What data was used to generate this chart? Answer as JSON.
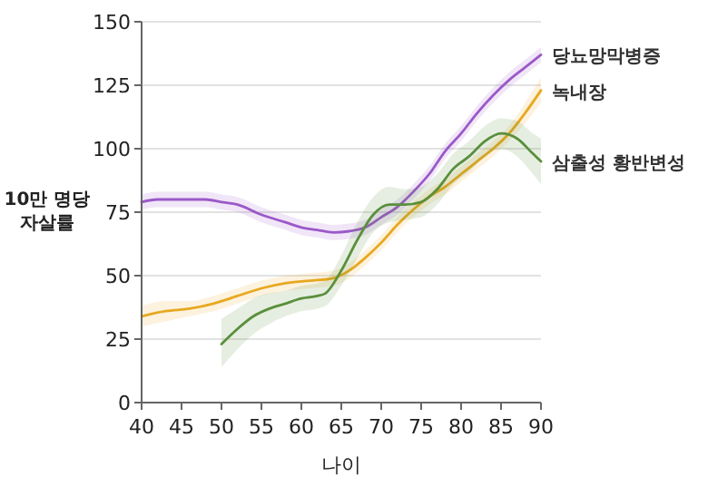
{
  "chart_data": {
    "type": "line",
    "xlabel": "나이",
    "ylabel": "10만 명당 자살률",
    "xlim": [
      40,
      90
    ],
    "xticks": [
      40,
      45,
      50,
      55,
      60,
      65,
      70,
      75,
      80,
      85,
      90
    ],
    "ylim": [
      0,
      150
    ],
    "yticks": [
      0,
      25,
      50,
      75,
      100,
      125,
      150
    ],
    "grid": "y",
    "legend": false,
    "marker": "none",
    "line_style": "solid",
    "series": [
      {
        "name": "당뇨망막병증",
        "color": "#9b59c8",
        "x": [
          40,
          42,
          45,
          48,
          50,
          52,
          55,
          58,
          60,
          62,
          64,
          66,
          68,
          70,
          72,
          74,
          76,
          78,
          80,
          82,
          84,
          86,
          88,
          90
        ],
        "values": [
          79,
          80,
          80,
          80,
          79,
          78,
          74,
          71,
          69,
          68,
          67,
          67.5,
          69,
          73,
          77,
          83,
          90,
          99,
          106,
          114,
          121,
          127,
          132,
          137
        ],
        "lower": [
          76,
          77,
          77,
          77,
          76,
          75,
          71,
          68,
          66,
          65,
          64,
          64.5,
          66,
          70,
          74,
          80,
          87,
          96,
          103,
          111,
          118,
          124,
          129,
          134
        ],
        "upper": [
          82,
          83,
          83,
          83,
          82,
          81,
          77,
          74,
          72,
          71,
          70,
          70.5,
          72,
          76,
          80,
          86,
          93,
          102,
          109,
          117,
          124,
          130,
          135,
          140
        ]
      },
      {
        "name": "녹내장",
        "color": "#e8a820",
        "x": [
          40,
          43,
          46,
          49,
          52,
          55,
          58,
          61,
          64,
          66,
          68,
          70,
          72,
          74,
          76,
          78,
          80,
          82,
          84,
          86,
          88,
          90
        ],
        "values": [
          34,
          36,
          37,
          39,
          42,
          45,
          47,
          48,
          49,
          52,
          57,
          63,
          70,
          76,
          81,
          85,
          90,
          95,
          100,
          106,
          114,
          123
        ],
        "lower": [
          30,
          32,
          34,
          36,
          39,
          42,
          44,
          45,
          46,
          49,
          54,
          60,
          67,
          73,
          78,
          82,
          87,
          92,
          97,
          103,
          110,
          118
        ],
        "upper": [
          38,
          40,
          40,
          42,
          45,
          48,
          50,
          51,
          52,
          55,
          60,
          66,
          73,
          79,
          84,
          88,
          93,
          98,
          103,
          109,
          118,
          128
        ]
      },
      {
        "name": "삼출성 황반변성",
        "color": "#5a8f3c",
        "x": [
          50,
          52,
          54,
          56,
          58,
          60,
          62,
          63,
          65,
          67,
          69,
          71,
          73,
          75,
          77,
          79,
          81,
          83,
          85,
          87,
          89,
          90
        ],
        "values": [
          23,
          29,
          34,
          37,
          39,
          41,
          42,
          43,
          52,
          64,
          74,
          78,
          78,
          79,
          84,
          92,
          97,
          103,
          106,
          104,
          98,
          95
        ],
        "lower": [
          14,
          21,
          27,
          31,
          34,
          36,
          37,
          38,
          46,
          57,
          67,
          71,
          72,
          73,
          78,
          86,
          91,
          97,
          100,
          97,
          90,
          86
        ],
        "upper": [
          33,
          37,
          41,
          43,
          44,
          46,
          47,
          48,
          58,
          71,
          81,
          85,
          84,
          85,
          90,
          98,
          103,
          109,
          112,
          111,
          106,
          104
        ]
      }
    ]
  }
}
